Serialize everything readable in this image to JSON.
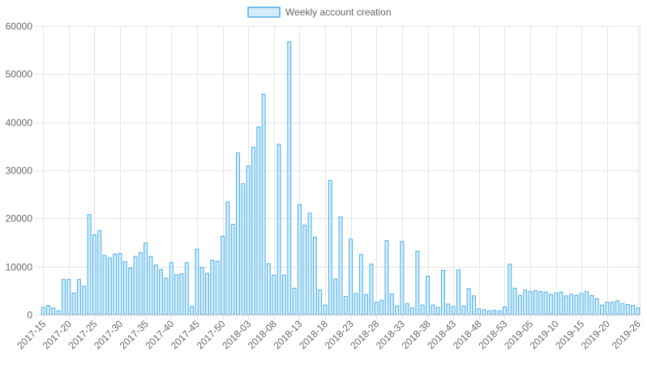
{
  "chart_data": {
    "type": "bar",
    "title": "",
    "xlabel": "",
    "ylabel": "",
    "legend_position": "top",
    "grid": true,
    "ylim": [
      0,
      60000
    ],
    "y_ticks": [
      0,
      10000,
      20000,
      30000,
      40000,
      50000,
      60000
    ],
    "colors": {
      "bar_fill": "#d5ecfa",
      "bar_stroke": "#4ab0e6",
      "grid": "#e5e5e5",
      "tick_text": "#666666"
    },
    "series": [
      {
        "name": "Weekly account creation",
        "values": [
          1500,
          1900,
          1400,
          800,
          7300,
          7300,
          4500,
          7300,
          5900,
          20800,
          16600,
          17500,
          12300,
          11800,
          12600,
          12700,
          11000,
          9700,
          12100,
          12900,
          14900,
          12100,
          10300,
          9400,
          7600,
          10800,
          8300,
          8500,
          10800,
          1700,
          13600,
          9800,
          8600,
          11300,
          11100,
          16300,
          23400,
          18800,
          33600,
          27200,
          30900,
          34800,
          39000,
          45800,
          10600,
          8200,
          35400,
          8200,
          56700,
          5500,
          22900,
          18600,
          21100,
          16100,
          5100,
          2000,
          27900,
          7400,
          20300,
          3800,
          15700,
          4400,
          12500,
          4200,
          10500,
          2600,
          3000,
          15400,
          4300,
          1800,
          15200,
          2300,
          1400,
          13200,
          2000,
          8000,
          2000,
          1500,
          9200,
          2200,
          1700,
          9300,
          1800,
          5400,
          3900,
          1200,
          1000,
          800,
          900,
          800,
          1600,
          10500,
          5500,
          4000,
          5100,
          4800,
          5000,
          4800,
          4700,
          4200,
          4500,
          4700,
          3900,
          4200,
          4000,
          4400,
          4800,
          4000,
          3300,
          2000,
          2600,
          2600,
          2900,
          2300,
          2100,
          1900,
          1400
        ]
      }
    ],
    "x_tick_labels": [
      {
        "index": 0,
        "label": "2017-15"
      },
      {
        "index": 5,
        "label": "2017-20"
      },
      {
        "index": 10,
        "label": "2017-25"
      },
      {
        "index": 15,
        "label": "2017-30"
      },
      {
        "index": 20,
        "label": "2017-35"
      },
      {
        "index": 25,
        "label": "2017-40"
      },
      {
        "index": 30,
        "label": "2017-45"
      },
      {
        "index": 35,
        "label": "2017-50"
      },
      {
        "index": 40,
        "label": "2018-03"
      },
      {
        "index": 45,
        "label": "2018-08"
      },
      {
        "index": 50,
        "label": "2018-13"
      },
      {
        "index": 55,
        "label": "2018-18"
      },
      {
        "index": 60,
        "label": "2018-23"
      },
      {
        "index": 65,
        "label": "2018-28"
      },
      {
        "index": 70,
        "label": "2018-33"
      },
      {
        "index": 75,
        "label": "2018-38"
      },
      {
        "index": 80,
        "label": "2018-43"
      },
      {
        "index": 85,
        "label": "2018-48"
      },
      {
        "index": 90,
        "label": "2018-53"
      },
      {
        "index": 95,
        "label": "2019-05"
      },
      {
        "index": 100,
        "label": "2019-10"
      },
      {
        "index": 105,
        "label": "2019-15"
      },
      {
        "index": 110,
        "label": "2019-20"
      },
      {
        "index": 116,
        "label": "2019-26"
      }
    ]
  }
}
